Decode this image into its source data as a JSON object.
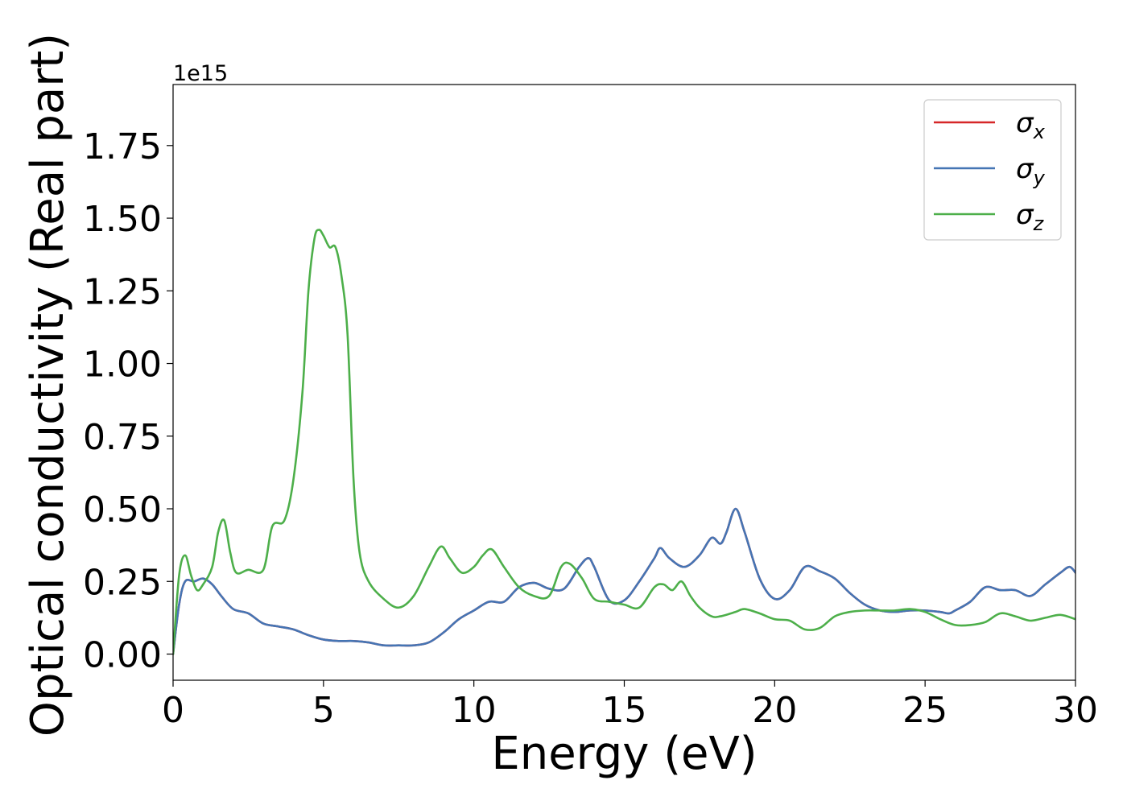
{
  "chart_data": {
    "type": "line",
    "xlabel": "Energy (eV)",
    "ylabel": "Optical conductivity (Real part)",
    "y_offset_label": "1e15",
    "xlim": [
      0,
      30
    ],
    "ylim": [
      -0.09,
      1.96
    ],
    "x_ticks": [
      0,
      5,
      10,
      15,
      20,
      25,
      30
    ],
    "x_tick_labels": [
      "0",
      "5",
      "10",
      "15",
      "20",
      "25",
      "30"
    ],
    "y_ticks": [
      0.0,
      0.25,
      0.5,
      0.75,
      1.0,
      1.25,
      1.5,
      1.75
    ],
    "y_tick_labels": [
      "0.00",
      "0.25",
      "0.50",
      "0.75",
      "1.00",
      "1.25",
      "1.50",
      "1.75"
    ],
    "grid": false,
    "legend_position": "top-right",
    "series": [
      {
        "name": "σ",
        "subscript": "x",
        "color": "#d62728",
        "x": [
          0,
          0.2,
          0.4,
          0.7,
          1.0,
          1.3,
          1.6,
          2.0,
          2.5,
          3.0,
          3.5,
          4.0,
          4.5,
          5.0,
          5.5,
          6.0,
          6.5,
          7.0,
          7.5,
          8.0,
          8.5,
          9.0,
          9.5,
          10.0,
          10.5,
          11.0,
          11.5,
          12.0,
          12.5,
          13.0,
          13.5,
          13.8,
          14.0,
          14.5,
          15.0,
          15.5,
          16.0,
          16.2,
          16.5,
          17.0,
          17.5,
          17.9,
          18.2,
          18.4,
          18.7,
          19.0,
          19.5,
          20.0,
          20.5,
          21.0,
          21.5,
          22.0,
          22.5,
          23.0,
          23.5,
          24.0,
          24.5,
          25.0,
          25.5,
          25.8,
          26.0,
          26.5,
          27.0,
          27.5,
          28.0,
          28.5,
          29.0,
          29.5,
          29.8,
          30.0
        ],
        "y": [
          0.0,
          0.17,
          0.25,
          0.25,
          0.26,
          0.24,
          0.2,
          0.155,
          0.14,
          0.105,
          0.095,
          0.085,
          0.065,
          0.05,
          0.045,
          0.045,
          0.04,
          0.03,
          0.03,
          0.03,
          0.04,
          0.075,
          0.12,
          0.15,
          0.18,
          0.18,
          0.23,
          0.245,
          0.225,
          0.225,
          0.3,
          0.33,
          0.3,
          0.185,
          0.185,
          0.25,
          0.33,
          0.365,
          0.33,
          0.3,
          0.34,
          0.4,
          0.38,
          0.42,
          0.5,
          0.42,
          0.26,
          0.19,
          0.22,
          0.3,
          0.285,
          0.26,
          0.21,
          0.17,
          0.15,
          0.145,
          0.15,
          0.15,
          0.145,
          0.14,
          0.15,
          0.18,
          0.23,
          0.22,
          0.22,
          0.2,
          0.24,
          0.28,
          0.3,
          0.28
        ]
      },
      {
        "name": "σ",
        "subscript": "y",
        "color": "#4575b4",
        "x": [
          0,
          0.2,
          0.4,
          0.7,
          1.0,
          1.3,
          1.6,
          2.0,
          2.5,
          3.0,
          3.5,
          4.0,
          4.5,
          5.0,
          5.5,
          6.0,
          6.5,
          7.0,
          7.5,
          8.0,
          8.5,
          9.0,
          9.5,
          10.0,
          10.5,
          11.0,
          11.5,
          12.0,
          12.5,
          13.0,
          13.5,
          13.8,
          14.0,
          14.5,
          15.0,
          15.5,
          16.0,
          16.2,
          16.5,
          17.0,
          17.5,
          17.9,
          18.2,
          18.4,
          18.7,
          19.0,
          19.5,
          20.0,
          20.5,
          21.0,
          21.5,
          22.0,
          22.5,
          23.0,
          23.5,
          24.0,
          24.5,
          25.0,
          25.5,
          25.8,
          26.0,
          26.5,
          27.0,
          27.5,
          28.0,
          28.5,
          29.0,
          29.5,
          29.8,
          30.0
        ],
        "y": [
          0.0,
          0.17,
          0.25,
          0.25,
          0.26,
          0.24,
          0.2,
          0.155,
          0.14,
          0.105,
          0.095,
          0.085,
          0.065,
          0.05,
          0.045,
          0.045,
          0.04,
          0.03,
          0.03,
          0.03,
          0.04,
          0.075,
          0.12,
          0.15,
          0.18,
          0.18,
          0.23,
          0.245,
          0.225,
          0.225,
          0.3,
          0.33,
          0.3,
          0.185,
          0.185,
          0.25,
          0.33,
          0.365,
          0.33,
          0.3,
          0.34,
          0.4,
          0.38,
          0.42,
          0.5,
          0.42,
          0.26,
          0.19,
          0.22,
          0.3,
          0.285,
          0.26,
          0.21,
          0.17,
          0.15,
          0.145,
          0.15,
          0.15,
          0.145,
          0.14,
          0.15,
          0.18,
          0.23,
          0.22,
          0.22,
          0.2,
          0.24,
          0.28,
          0.3,
          0.28
        ]
      },
      {
        "name": "σ",
        "subscript": "z",
        "color": "#4daf4a",
        "x": [
          0,
          0.2,
          0.4,
          0.6,
          0.8,
          1.0,
          1.3,
          1.5,
          1.7,
          1.9,
          2.1,
          2.5,
          3.0,
          3.3,
          3.7,
          4.0,
          4.3,
          4.5,
          4.7,
          4.85,
          5.0,
          5.2,
          5.4,
          5.6,
          5.8,
          6.0,
          6.2,
          6.5,
          7.0,
          7.5,
          8.0,
          8.5,
          8.9,
          9.2,
          9.6,
          10.0,
          10.3,
          10.6,
          11.0,
          11.5,
          12.0,
          12.5,
          12.9,
          13.2,
          13.6,
          14.0,
          14.5,
          15.0,
          15.5,
          16.0,
          16.3,
          16.6,
          16.9,
          17.2,
          17.5,
          17.9,
          18.2,
          18.7,
          19.0,
          19.5,
          20.0,
          20.5,
          21.0,
          21.5,
          22.0,
          22.5,
          23.0,
          23.5,
          24.0,
          24.5,
          25.0,
          25.5,
          26.0,
          26.5,
          27.0,
          27.5,
          28.0,
          28.5,
          29.0,
          29.5,
          30.0
        ],
        "y": [
          0.0,
          0.27,
          0.34,
          0.27,
          0.22,
          0.24,
          0.3,
          0.42,
          0.46,
          0.35,
          0.28,
          0.29,
          0.29,
          0.44,
          0.46,
          0.6,
          0.9,
          1.25,
          1.43,
          1.46,
          1.44,
          1.4,
          1.4,
          1.3,
          1.1,
          0.6,
          0.35,
          0.25,
          0.19,
          0.16,
          0.2,
          0.3,
          0.37,
          0.33,
          0.28,
          0.3,
          0.34,
          0.36,
          0.3,
          0.23,
          0.2,
          0.2,
          0.3,
          0.31,
          0.26,
          0.19,
          0.18,
          0.17,
          0.16,
          0.23,
          0.24,
          0.22,
          0.25,
          0.2,
          0.16,
          0.13,
          0.13,
          0.145,
          0.155,
          0.14,
          0.12,
          0.115,
          0.085,
          0.09,
          0.13,
          0.145,
          0.15,
          0.15,
          0.15,
          0.155,
          0.145,
          0.12,
          0.1,
          0.1,
          0.11,
          0.14,
          0.13,
          0.115,
          0.125,
          0.135,
          0.12
        ]
      }
    ]
  }
}
